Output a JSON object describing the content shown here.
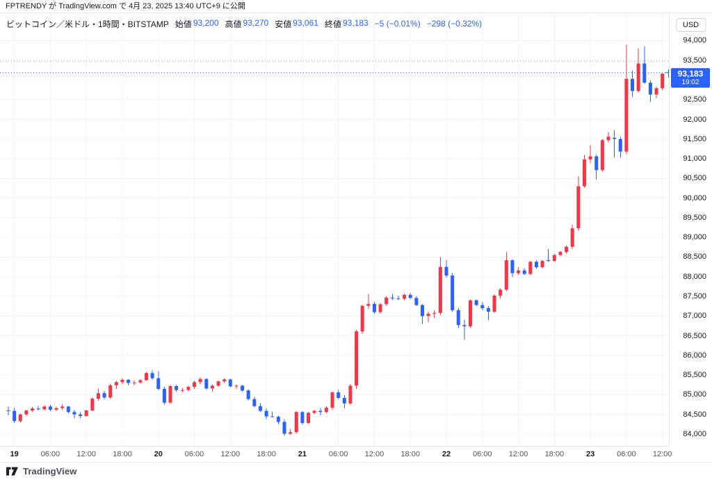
{
  "header": {
    "publish_text": "FPTRENDY が TradingView.com で 4月 23, 2025 13:40 UTC+9 に公開"
  },
  "legend": {
    "symbol_title": "ビットコイン／米ドル・1時間・BITSTAMP",
    "ohlc": [
      {
        "label": "始値",
        "value": "93,200"
      },
      {
        "label": "高値",
        "value": "93,270"
      },
      {
        "label": "安値",
        "value": "93,061"
      },
      {
        "label": "終値",
        "value": "93,183"
      }
    ],
    "change_abs": "−5 (−0.01%)",
    "change_day": "−298 (−0.32%)"
  },
  "price_axis": {
    "currency_button": "USD",
    "last_price_label": {
      "price": "93,183",
      "time": "19:02"
    }
  },
  "watermark": {
    "brand": "TradingView"
  },
  "colors": {
    "up": "#f23645",
    "down": "#2962ff",
    "accent": "#2962ff",
    "prev_close_line": "#9598a1",
    "grid": "#f0f3fa",
    "axis_border": "#e0e3eb"
  },
  "chart_data": {
    "type": "candlestick",
    "title": "ビットコイン／米ドル・1時間・BITSTAMP",
    "symbol": "BTCUSD",
    "exchange": "BITSTAMP",
    "interval": "1時間",
    "start_time": "2025-04-18 23:00",
    "interval_minutes": 60,
    "axis": {
      "price_min": 84000,
      "price_max": 94000,
      "step": 500
    },
    "ylim": [
      83900,
      94150
    ],
    "last_price": 93183,
    "prev_close": 93481,
    "grid": true,
    "up_means": "red (Japanese convention)",
    "time_ticks": [
      {
        "i": 1,
        "label": "19",
        "day": true
      },
      {
        "i": 7,
        "label": "06:00"
      },
      {
        "i": 13,
        "label": "12:00"
      },
      {
        "i": 19,
        "label": "18:00"
      },
      {
        "i": 25,
        "label": "20",
        "day": true
      },
      {
        "i": 31,
        "label": "06:00"
      },
      {
        "i": 37,
        "label": "12:00"
      },
      {
        "i": 43,
        "label": "18:00"
      },
      {
        "i": 49,
        "label": "21",
        "day": true
      },
      {
        "i": 55,
        "label": "06:00"
      },
      {
        "i": 61,
        "label": "12:00"
      },
      {
        "i": 67,
        "label": "18:00"
      },
      {
        "i": 73,
        "label": "22",
        "day": true
      },
      {
        "i": 79,
        "label": "06:00"
      },
      {
        "i": 85,
        "label": "12:00"
      },
      {
        "i": 91,
        "label": "18:00"
      },
      {
        "i": 97,
        "label": "23",
        "day": true
      },
      {
        "i": 103,
        "label": "06:00"
      },
      {
        "i": 109,
        "label": "12:00"
      }
    ],
    "candles": [
      [
        84600,
        84700,
        84480,
        84590
      ],
      [
        84590,
        84660,
        84280,
        84330
      ],
      [
        84330,
        84520,
        84300,
        84500
      ],
      [
        84500,
        84620,
        84460,
        84600
      ],
      [
        84600,
        84690,
        84560,
        84650
      ],
      [
        84650,
        84720,
        84600,
        84630
      ],
      [
        84630,
        84730,
        84600,
        84700
      ],
      [
        84700,
        84740,
        84580,
        84620
      ],
      [
        84620,
        84700,
        84580,
        84660
      ],
      [
        84660,
        84760,
        84620,
        84700
      ],
      [
        84700,
        84720,
        84530,
        84560
      ],
      [
        84560,
        84620,
        84400,
        84500
      ],
      [
        84500,
        84560,
        84410,
        84460
      ],
      [
        84460,
        84620,
        84440,
        84600
      ],
      [
        84600,
        84940,
        84580,
        84900
      ],
      [
        84900,
        85150,
        84850,
        85040
      ],
      [
        85040,
        85100,
        84880,
        84930
      ],
      [
        84930,
        85280,
        84900,
        85240
      ],
      [
        85240,
        85350,
        85150,
        85320
      ],
      [
        85320,
        85420,
        85260,
        85380
      ],
      [
        85380,
        85400,
        85240,
        85300
      ],
      [
        85300,
        85360,
        85240,
        85310
      ],
      [
        85310,
        85400,
        85280,
        85370
      ],
      [
        85370,
        85580,
        85350,
        85550
      ],
      [
        85550,
        85620,
        85380,
        85420
      ],
      [
        85420,
        85600,
        85110,
        85150
      ],
      [
        85150,
        85200,
        84750,
        84800
      ],
      [
        84800,
        85250,
        84770,
        85220
      ],
      [
        85220,
        85250,
        85080,
        85120
      ],
      [
        85120,
        85180,
        85060,
        85120
      ],
      [
        85120,
        85230,
        85090,
        85200
      ],
      [
        85200,
        85350,
        85150,
        85320
      ],
      [
        85320,
        85440,
        85260,
        85400
      ],
      [
        85400,
        85420,
        85120,
        85160
      ],
      [
        85160,
        85260,
        85080,
        85230
      ],
      [
        85230,
        85360,
        85200,
        85340
      ],
      [
        85340,
        85420,
        85300,
        85390
      ],
      [
        85390,
        85410,
        85190,
        85210
      ],
      [
        85210,
        85260,
        85150,
        85230
      ],
      [
        85230,
        85250,
        85080,
        85110
      ],
      [
        85110,
        85140,
        84860,
        84890
      ],
      [
        84890,
        84950,
        84680,
        84710
      ],
      [
        84710,
        84790,
        84560,
        84590
      ],
      [
        84590,
        84650,
        84380,
        84450
      ],
      [
        84450,
        84570,
        84420,
        84440
      ],
      [
        84440,
        84470,
        84250,
        84310
      ],
      [
        84310,
        84380,
        83960,
        84010
      ],
      [
        84010,
        84120,
        83980,
        84050
      ],
      [
        84050,
        84580,
        84010,
        84560
      ],
      [
        84560,
        84580,
        84240,
        84280
      ],
      [
        84280,
        84570,
        84260,
        84540
      ],
      [
        84540,
        84620,
        84500,
        84590
      ],
      [
        84590,
        84660,
        84480,
        84560
      ],
      [
        84560,
        84710,
        84530,
        84670
      ],
      [
        84670,
        85090,
        84610,
        85060
      ],
      [
        85060,
        85120,
        84890,
        84920
      ],
      [
        84920,
        84990,
        84650,
        84780
      ],
      [
        84780,
        85270,
        84740,
        85230
      ],
      [
        85230,
        86650,
        85150,
        86610
      ],
      [
        86610,
        87290,
        86550,
        87260
      ],
      [
        87260,
        87560,
        87180,
        87310
      ],
      [
        87310,
        87360,
        87060,
        87100
      ],
      [
        87100,
        87330,
        87060,
        87300
      ],
      [
        87300,
        87500,
        87260,
        87470
      ],
      [
        87470,
        87560,
        87400,
        87450
      ],
      [
        87450,
        87520,
        87400,
        87440
      ],
      [
        87440,
        87570,
        87400,
        87540
      ],
      [
        87540,
        87590,
        87430,
        87460
      ],
      [
        87460,
        87500,
        87250,
        87280
      ],
      [
        87280,
        87310,
        86790,
        87000
      ],
      [
        87000,
        87120,
        86850,
        87060
      ],
      [
        87060,
        87150,
        86950,
        87080
      ],
      [
        87080,
        88500,
        87020,
        88250
      ],
      [
        88250,
        88420,
        87980,
        88030
      ],
      [
        88030,
        88090,
        87100,
        87150
      ],
      [
        87150,
        87200,
        86700,
        86770
      ],
      [
        86770,
        86910,
        86400,
        86740
      ],
      [
        86740,
        87420,
        86700,
        87400
      ],
      [
        87400,
        87430,
        87240,
        87280
      ],
      [
        87280,
        87360,
        87150,
        87200
      ],
      [
        87200,
        87250,
        86900,
        87110
      ],
      [
        87110,
        87550,
        87080,
        87520
      ],
      [
        87520,
        87700,
        87450,
        87670
      ],
      [
        87670,
        88620,
        87630,
        88420
      ],
      [
        88420,
        88450,
        88000,
        88090
      ],
      [
        88090,
        88240,
        88040,
        88160
      ],
      [
        88160,
        88220,
        88040,
        88070
      ],
      [
        88070,
        88400,
        88040,
        88380
      ],
      [
        88380,
        88420,
        88200,
        88240
      ],
      [
        88240,
        88430,
        88210,
        88400
      ],
      [
        88420,
        88700,
        88380,
        88400
      ],
      [
        88400,
        88580,
        88380,
        88550
      ],
      [
        88550,
        88660,
        88520,
        88630
      ],
      [
        88630,
        88790,
        88600,
        88760
      ],
      [
        88760,
        89320,
        88700,
        89230
      ],
      [
        89230,
        90550,
        89160,
        90300
      ],
      [
        90300,
        91090,
        90260,
        90980
      ],
      [
        90980,
        91350,
        90890,
        91060
      ],
      [
        91060,
        91100,
        90470,
        90710
      ],
      [
        90710,
        91500,
        90670,
        91470
      ],
      [
        91470,
        91670,
        91420,
        91560
      ],
      [
        91530,
        91730,
        91030,
        91500
      ],
      [
        91500,
        91560,
        91030,
        91180
      ],
      [
        91180,
        93890,
        91120,
        93030
      ],
      [
        93030,
        93240,
        92570,
        92720
      ],
      [
        92720,
        93800,
        92680,
        93420
      ],
      [
        93420,
        93860,
        92900,
        92930
      ],
      [
        92930,
        92990,
        92440,
        92630
      ],
      [
        92630,
        92830,
        92540,
        92790
      ],
      [
        92790,
        93170,
        92740,
        93160
      ],
      [
        93200,
        93270,
        93061,
        93183
      ]
    ]
  }
}
